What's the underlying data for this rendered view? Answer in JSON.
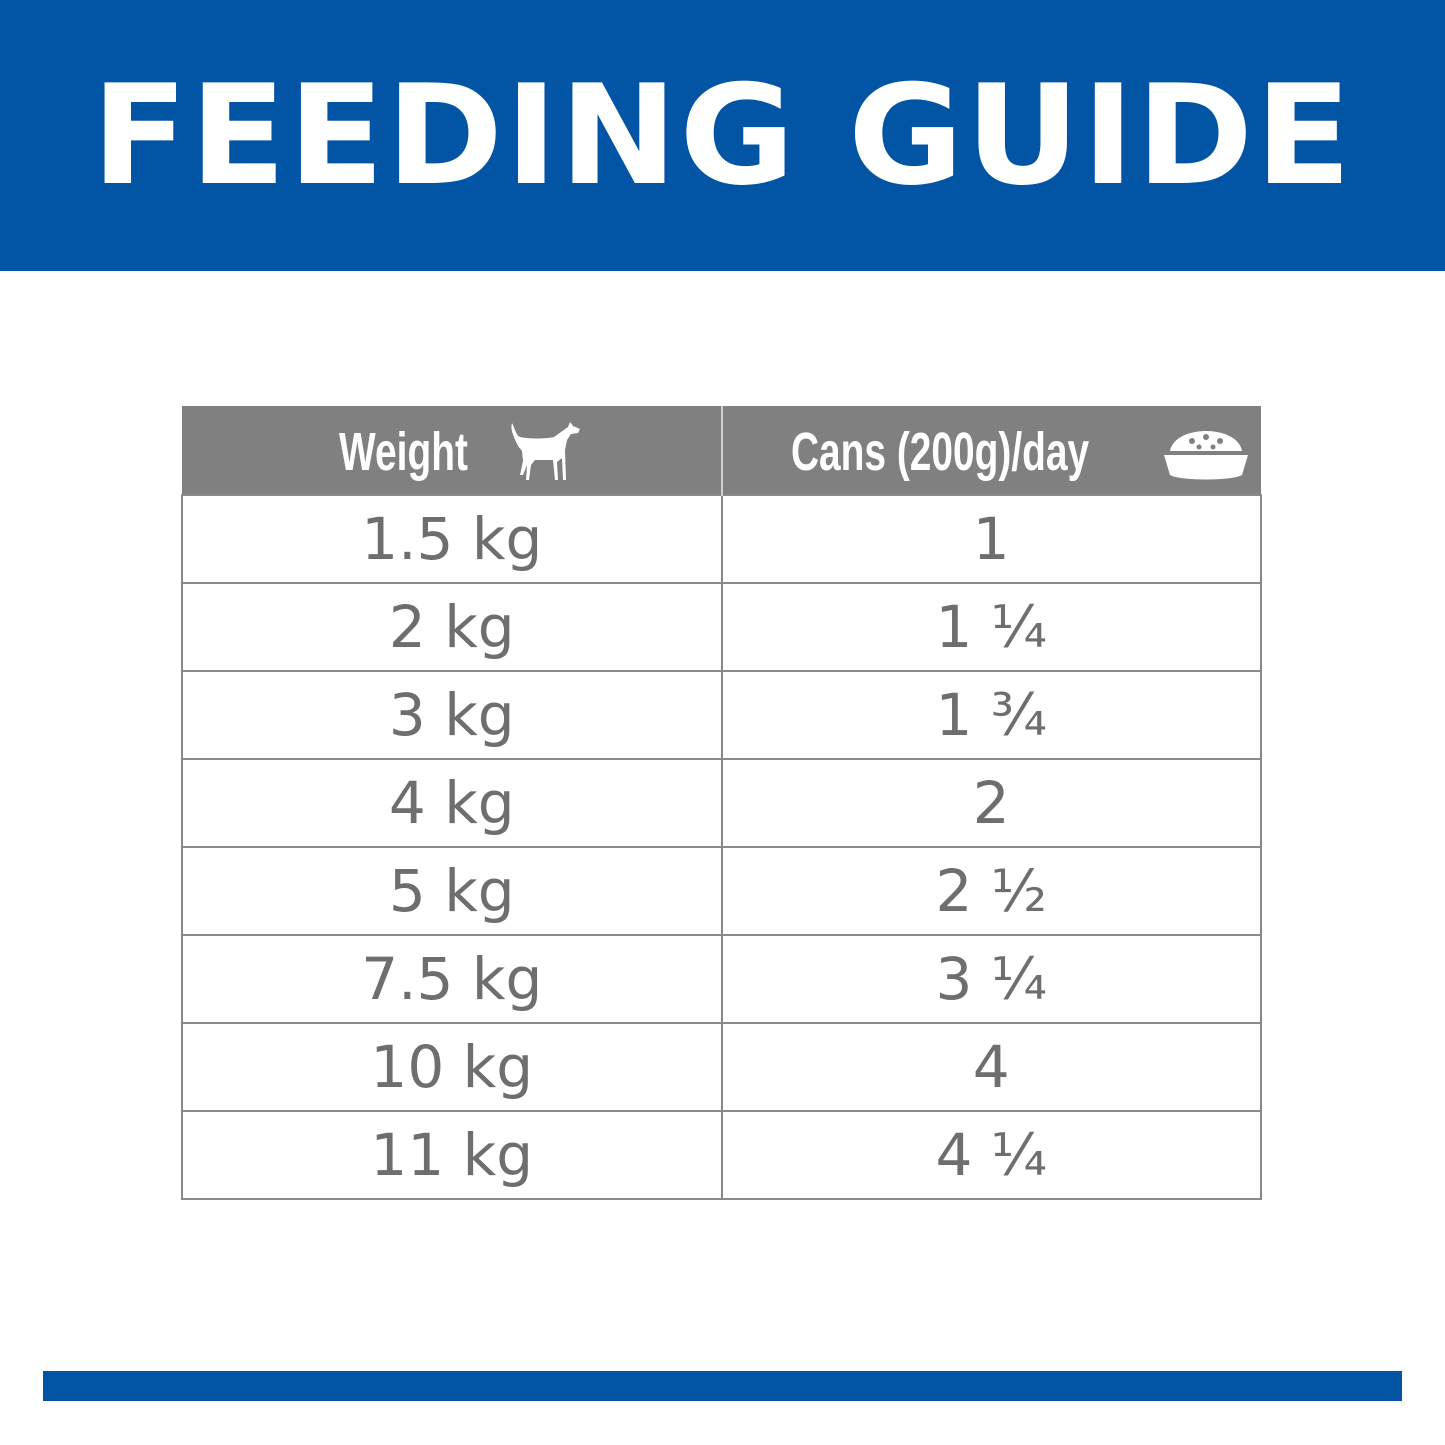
{
  "title": "FEEDING GUIDE",
  "table": {
    "headers": [
      {
        "label": "Weight",
        "icon": "dog-icon"
      },
      {
        "label": "Cans (200g)/day",
        "icon": "food-bowl-icon"
      }
    ],
    "rows": [
      {
        "weight": "1.5 kg",
        "cans": "1"
      },
      {
        "weight": "2 kg",
        "cans": "1 ¼"
      },
      {
        "weight": "3 kg",
        "cans": "1 ¾"
      },
      {
        "weight": "4 kg",
        "cans": "2"
      },
      {
        "weight": "5 kg",
        "cans": "2 ½"
      },
      {
        "weight": "7.5 kg",
        "cans": "3 ¼"
      },
      {
        "weight": "10 kg",
        "cans": "4"
      },
      {
        "weight": "11 kg",
        "cans": "4 ¼"
      }
    ]
  },
  "colors": {
    "brand_blue": "#0254a5",
    "header_gray": "#808080",
    "text_gray": "#6d6e70"
  }
}
